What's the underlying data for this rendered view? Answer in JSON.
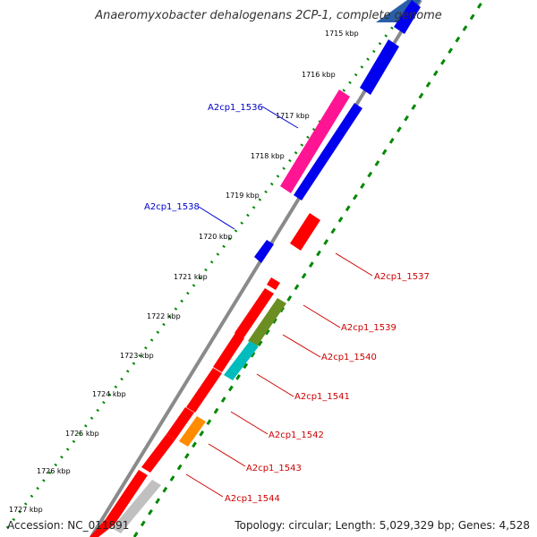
{
  "title": "Anaeromyxobacter dehalogenans 2CP-1, complete genome",
  "accession": "Accession: NC_011891",
  "topology": "Topology: circular; Length: 5,029,329 bp; Genes: 4,528",
  "colors": {
    "forward_gene": "#0000ee",
    "reverse_gene": "#ff0000",
    "ruler_dots": "#008800",
    "label_forward": "#0000cc",
    "label_reverse": "#cc0000",
    "backbone": "#888888"
  },
  "ticks": [
    {
      "label": "1715 kbp"
    },
    {
      "label": "1716 kbp"
    },
    {
      "label": "1717 kbp"
    },
    {
      "label": "1718 kbp"
    },
    {
      "label": "1719 kbp"
    },
    {
      "label": "1720 kbp"
    },
    {
      "label": "1721 kbp"
    },
    {
      "label": "1722 kbp"
    },
    {
      "label": "1723 kbp"
    },
    {
      "label": "1724 kbp"
    },
    {
      "label": "1725 kbp"
    },
    {
      "label": "1726 kbp"
    },
    {
      "label": "1727 kbp"
    }
  ],
  "gene_labels": [
    {
      "text": "A2cp1_1536",
      "strand": "forward"
    },
    {
      "text": "A2cp1_1538",
      "strand": "forward"
    },
    {
      "text": "A2cp1_1537",
      "strand": "reverse"
    },
    {
      "text": "A2cp1_1539",
      "strand": "reverse"
    },
    {
      "text": "A2cp1_1540",
      "strand": "reverse"
    },
    {
      "text": "A2cp1_1541",
      "strand": "reverse"
    },
    {
      "text": "A2cp1_1542",
      "strand": "reverse"
    },
    {
      "text": "A2cp1_1543",
      "strand": "reverse"
    },
    {
      "text": "A2cp1_1544",
      "strand": "reverse"
    }
  ]
}
